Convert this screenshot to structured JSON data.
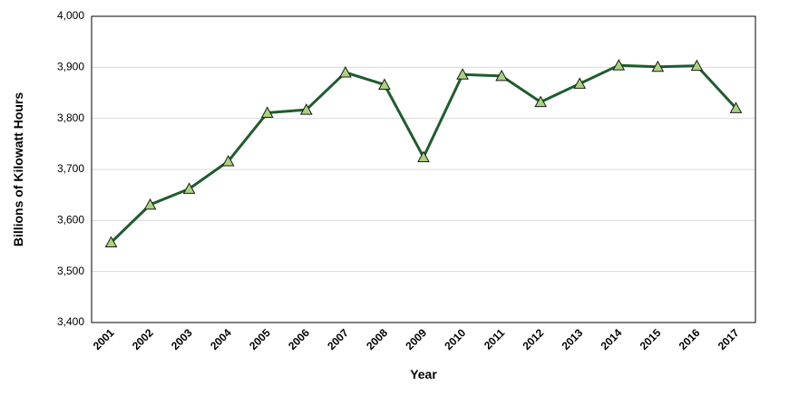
{
  "chart_data": {
    "type": "line",
    "title": "",
    "xlabel": "Year",
    "ylabel": "Billions of Kilowatt Hours",
    "ylim": [
      3400,
      4000
    ],
    "yticks": [
      3400,
      3500,
      3600,
      3700,
      3800,
      3900,
      4000
    ],
    "ytick_labels": [
      "3,400",
      "3,500",
      "3,600",
      "3,700",
      "3,800",
      "3,900",
      "4,000"
    ],
    "grid": true,
    "legend": "none",
    "categories": [
      "2001",
      "2002",
      "2003",
      "2004",
      "2005",
      "2006",
      "2007",
      "2008",
      "2009",
      "2010",
      "2011",
      "2012",
      "2013",
      "2014",
      "2015",
      "2016",
      "2017"
    ],
    "series": [
      {
        "values": [
          3557,
          3631,
          3662,
          3716,
          3811,
          3817,
          3890,
          3866,
          3724,
          3886,
          3883,
          3832,
          3868,
          3904,
          3901,
          3903,
          3820
        ],
        "line_color": "#1e5c2e",
        "marker": "triangle",
        "marker_color": "#a9d37c"
      }
    ]
  }
}
